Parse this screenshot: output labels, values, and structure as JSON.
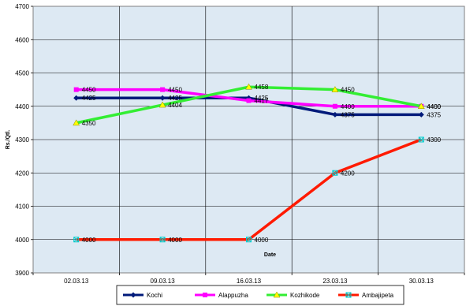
{
  "chart_data": {
    "type": "line",
    "title": "",
    "xlabel": "Date",
    "ylabel": "Rs./Qtl.",
    "ylim": [
      3900,
      4700
    ],
    "ytick_step": 100,
    "categories": [
      "02.03.13",
      "09.03.13",
      "16.03.13",
      "23.03.13",
      "30.03.13"
    ],
    "grid": true,
    "legend_position": "bottom",
    "plot_background": "#dde9f3",
    "series": [
      {
        "name": "Kochi",
        "values": [
          4425,
          4425,
          4425,
          4375,
          4375
        ],
        "color": "#001a7a",
        "marker": "diamond",
        "marker_color": "#001a7a",
        "labels": [
          "4425",
          "4425",
          "4425",
          "4375",
          "4375"
        ]
      },
      {
        "name": "Alappuzha",
        "values": [
          4450,
          4450,
          4417,
          4400,
          4400
        ],
        "color": "#ff00ff",
        "marker": "square",
        "marker_color": "#ff00ff",
        "labels": [
          "4450",
          "4450",
          "4417",
          "4400",
          "4400"
        ]
      },
      {
        "name": "Kozhikode",
        "values": [
          4350,
          4404,
          4458,
          4450,
          4400
        ],
        "color": "#33ee33",
        "marker": "triangle",
        "marker_color": "#ffff00",
        "labels": [
          "4350",
          "4404",
          "4458",
          "4450",
          "4400"
        ]
      },
      {
        "name": "Ambajipeta",
        "values": [
          4000,
          4000,
          4000,
          4200,
          4300
        ],
        "color": "#ff1a00",
        "marker": "x",
        "marker_color": "#00cccc",
        "labels": [
          "4000",
          "4000",
          "4000",
          "4200",
          "4300"
        ]
      }
    ]
  }
}
